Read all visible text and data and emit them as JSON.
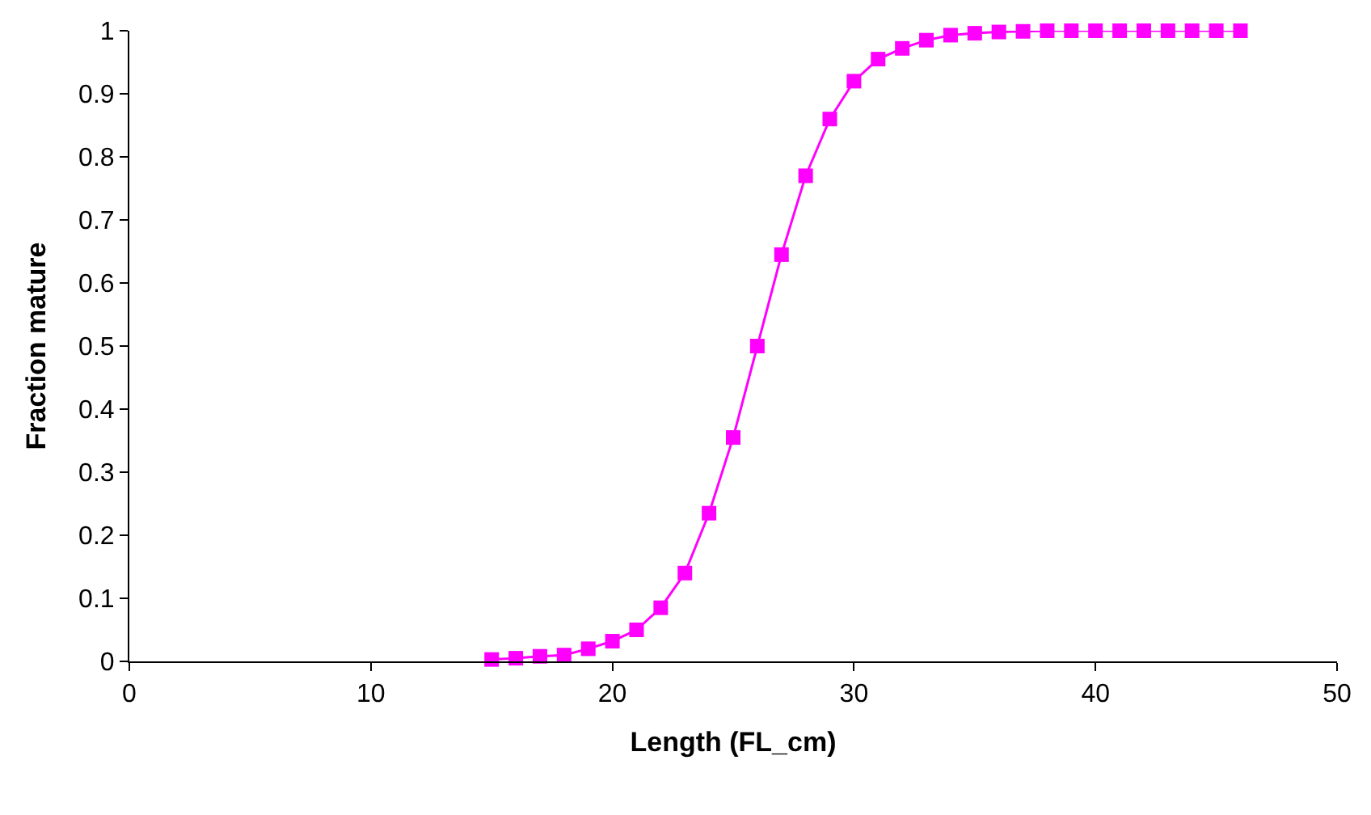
{
  "chart_data": {
    "type": "line",
    "xlabel": "Length (FL_cm)",
    "ylabel": "Fraction mature",
    "x": [
      15,
      16,
      17,
      18,
      19,
      20,
      21,
      22,
      23,
      24,
      25,
      26,
      27,
      28,
      29,
      30,
      31,
      32,
      33,
      34,
      35,
      36,
      37,
      38,
      39,
      40,
      41,
      42,
      43,
      44,
      45,
      46
    ],
    "series": [
      {
        "color": "#ff00ff",
        "values": [
          0.003,
          0.005,
          0.008,
          0.01,
          0.02,
          0.032,
          0.05,
          0.085,
          0.14,
          0.235,
          0.355,
          0.5,
          0.645,
          0.77,
          0.86,
          0.92,
          0.955,
          0.972,
          0.985,
          0.993,
          0.996,
          0.998,
          0.999,
          1,
          1,
          1,
          1,
          1,
          1,
          1,
          1,
          1
        ]
      }
    ],
    "xlim": [
      0,
      50
    ],
    "xticks": [
      0,
      10,
      20,
      30,
      40,
      50
    ],
    "ylim": [
      0,
      1
    ],
    "yticks": [
      0,
      0.1,
      0.2,
      0.3,
      0.4,
      0.5,
      0.6,
      0.7,
      0.8,
      0.9,
      1
    ],
    "legend": false,
    "marker": "square",
    "line_style": "solid"
  }
}
